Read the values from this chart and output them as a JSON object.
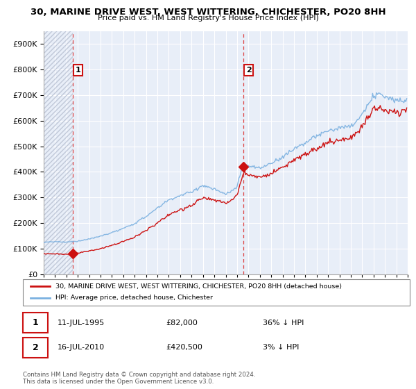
{
  "title": "30, MARINE DRIVE WEST, WEST WITTERING, CHICHESTER, PO20 8HH",
  "subtitle": "Price paid vs. HM Land Registry's House Price Index (HPI)",
  "legend_line1": "30, MARINE DRIVE WEST, WEST WITTERING, CHICHESTER, PO20 8HH (detached house)",
  "legend_line2": "HPI: Average price, detached house, Chichester",
  "annotation1_date": "11-JUL-1995",
  "annotation1_price": "£82,000",
  "annotation1_hpi": "36% ↓ HPI",
  "annotation2_date": "16-JUL-2010",
  "annotation2_price": "£420,500",
  "annotation2_hpi": "3% ↓ HPI",
  "footer": "Contains HM Land Registry data © Crown copyright and database right 2024.\nThis data is licensed under the Open Government Licence v3.0.",
  "sale1_year": 1995.54,
  "sale1_value": 82000,
  "sale2_year": 2010.54,
  "sale2_value": 420500,
  "hpi_color": "#7ab0e0",
  "price_color": "#cc1111",
  "vline_color": "#dd4444",
  "annotation_box_color": "#cc1111",
  "ylim_max": 950000,
  "ylim_min": 0,
  "xmin": 1993,
  "xmax": 2025,
  "plot_bg_color": "#e8eef8",
  "grid_color": "#ffffff"
}
